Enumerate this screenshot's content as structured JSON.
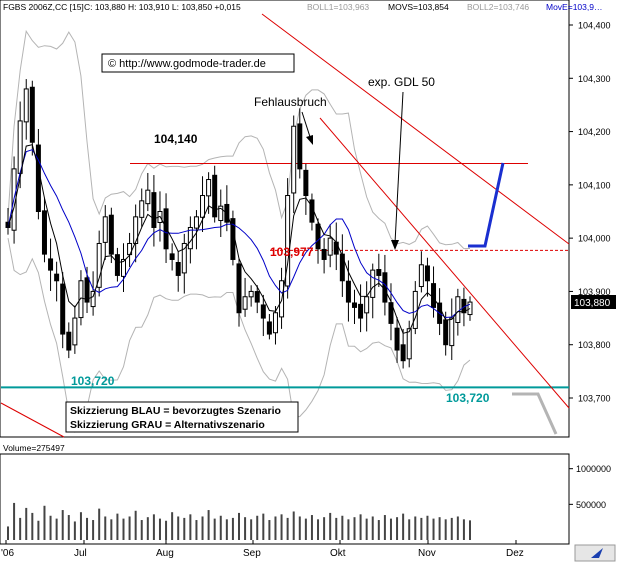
{
  "header": {
    "instrument": "FGBS 2006Z,CC [15]",
    "ohlc": "C: 103,880 H: 103,910 L: 103,850 +0,015",
    "boll1": "BOLL1=103,963",
    "movs": "MOVS=103,854",
    "boll2": "BOLL2=103,746",
    "move": "MovE=103,9…"
  },
  "copyright": "© http://www.godmode-trader.de",
  "annotations": {
    "level_high": "104,140",
    "level_mid": "103,977",
    "level_low_left": "103,720",
    "level_low_right": "103,720",
    "fehlausbruch": "Fehlausbruch",
    "gdl": "exp. GDL 50",
    "legend_line1": "Skizzierung BLAU = bevorzugtes Szenario",
    "legend_line2": "Skizzierung GRAU = Alternativszenario",
    "last_price": "103,880"
  },
  "colors": {
    "candle_up": "#000000",
    "candle_down": "#000000",
    "bollinger": "#b4b4b4",
    "moving_average": "#0000c8",
    "exp_average": "#000000",
    "red_lines": "#dd0000",
    "support": "#009a9a",
    "scenario_blue": "#1a2fd0",
    "scenario_grey": "#b4b4b4",
    "volume": "#444444"
  },
  "chart_data": [
    {
      "type": "candlestick",
      "title": "FGBS 2006Z,CC [15]",
      "x": [
        "'06",
        "Jul",
        "Aug",
        "Sep",
        "Okt",
        "Nov",
        "Dez"
      ],
      "y_ticks": [
        "104,400",
        "104,300",
        "104,200",
        "104,100",
        "104,000",
        "103,900",
        "103,800",
        "103,700"
      ],
      "ylim": [
        103.66,
        104.43
      ],
      "last_close": 103.88,
      "series": [
        {
          "name": "BOLL1",
          "last": 103.963
        },
        {
          "name": "MOVS",
          "last": 103.854
        },
        {
          "name": "BOLL2",
          "last": 103.746
        }
      ],
      "closes": [
        104.02,
        104.13,
        104.22,
        104.28,
        104.18,
        104.05,
        103.97,
        103.94,
        103.92,
        103.82,
        103.79,
        103.85,
        103.92,
        103.88,
        103.9,
        103.99,
        104.04,
        103.97,
        103.93,
        103.96,
        103.99,
        104.04,
        104.07,
        104.09,
        104.02,
        104.05,
        103.98,
        103.96,
        103.93,
        103.99,
        104.02,
        104.04,
        104.08,
        104.11,
        104.04,
        104.06,
        104.03,
        103.96,
        103.86,
        103.89,
        103.9,
        103.88,
        103.85,
        103.82,
        103.86,
        103.92,
        104.08,
        104.21,
        104.13,
        104.08,
        104.03,
        103.98,
        103.96,
        104.0,
        103.97,
        103.92,
        103.88,
        103.87,
        103.85,
        103.89,
        103.94,
        103.93,
        103.88,
        103.84,
        103.79,
        103.77,
        103.83,
        103.9,
        103.95,
        103.92,
        103.87,
        103.84,
        103.8,
        103.85,
        103.89,
        103.86,
        103.88
      ],
      "levels": {
        "resistance_high": 104.14,
        "resistance_mid": 103.977,
        "support": 103.72
      }
    },
    {
      "type": "bar",
      "title": "Volume=275497",
      "y_ticks": [
        "1000000",
        "500000"
      ],
      "ylim": [
        0,
        1150000
      ],
      "values": [
        190000,
        520000,
        310000,
        450000,
        380000,
        270000,
        480000,
        340000,
        300000,
        420000,
        350000,
        260000,
        390000,
        310000,
        280000,
        440000,
        330000,
        290000,
        370000,
        300000,
        330000,
        410000,
        280000,
        320000,
        360000,
        300000,
        270000,
        390000,
        330000,
        310000,
        360000,
        280000,
        330000,
        420000,
        300000,
        340000,
        290000,
        310000,
        380000,
        320000,
        290000,
        340000,
        370000,
        280000,
        330000,
        360000,
        310000,
        400000,
        330000,
        300000,
        350000,
        290000,
        320000,
        380000,
        310000,
        340000,
        290000,
        320000,
        360000,
        300000,
        330000,
        280000,
        350000,
        300000,
        320000,
        370000,
        290000,
        330000,
        310000,
        340000,
        300000,
        320000,
        290000,
        310000,
        330000,
        290000,
        275497
      ]
    }
  ]
}
